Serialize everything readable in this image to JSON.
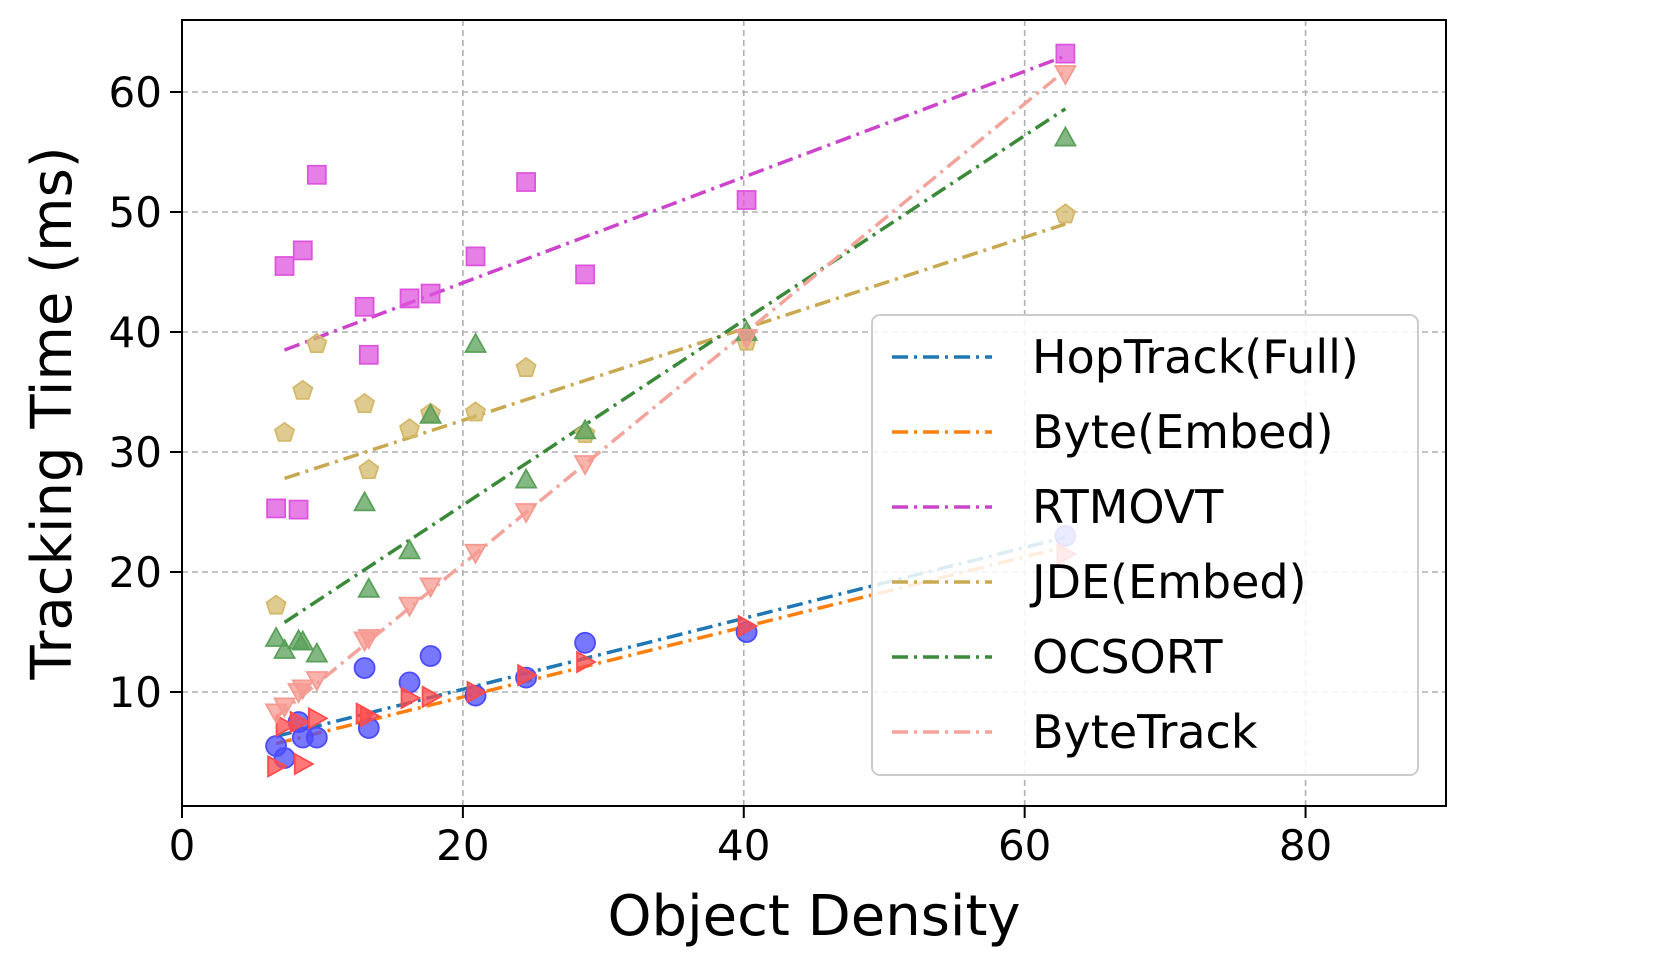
{
  "chart_data": {
    "type": "scatter",
    "xlabel": "Object Density",
    "ylabel": "Tracking Time (ms)",
    "xlim": [
      0,
      90
    ],
    "ylim": [
      0.5,
      66
    ],
    "grid": true,
    "legend_position": "lower-right",
    "xticks": [
      0,
      20,
      40,
      60,
      80
    ],
    "yticks": [
      10,
      20,
      30,
      40,
      50,
      60
    ],
    "series": [
      {
        "name": "HopTrack(Full)",
        "marker": "circle",
        "marker_color": "#4b4bff",
        "line_color": "#1f77b4",
        "x": [
          6.7,
          7.3,
          8.3,
          8.6,
          9.6,
          13.0,
          13.3,
          16.2,
          17.7,
          20.9,
          24.5,
          28.7,
          40.2,
          62.9
        ],
        "y": [
          5.5,
          4.5,
          7.5,
          6.2,
          6.2,
          12.0,
          7.0,
          10.8,
          13.0,
          9.7,
          11.2,
          14.1,
          15.0,
          23.0
        ],
        "fit": [
          [
            6.7,
            6.3
          ],
          [
            62.9,
            22.9
          ]
        ]
      },
      {
        "name": "Byte(Embed)",
        "marker": "triangle-right",
        "marker_color": "#ff4b4b",
        "line_color": "#ff7f0e",
        "x": [
          6.7,
          7.3,
          8.3,
          8.6,
          9.6,
          13.0,
          13.3,
          16.2,
          17.7,
          20.9,
          24.5,
          28.7,
          40.2,
          62.9
        ],
        "y": [
          3.8,
          7.2,
          7.5,
          4.0,
          7.8,
          8.2,
          8.0,
          9.5,
          9.6,
          10.0,
          11.4,
          12.5,
          15.5,
          21.5
        ],
        "fit": [
          [
            6.7,
            5.7
          ],
          [
            62.9,
            22.1
          ]
        ]
      },
      {
        "name": "RTMOVT",
        "marker": "square",
        "marker_color": "#dd55dd",
        "line_color": "#cc44cc",
        "x": [
          6.7,
          7.3,
          8.3,
          8.6,
          9.6,
          13.0,
          13.3,
          16.2,
          17.7,
          20.9,
          24.5,
          28.7,
          40.2,
          62.9
        ],
        "y": [
          25.3,
          45.5,
          25.2,
          46.8,
          53.1,
          42.1,
          38.1,
          42.8,
          43.2,
          46.3,
          52.5,
          44.8,
          51.0,
          63.2
        ],
        "fit": [
          [
            7.3,
            38.5
          ],
          [
            62.9,
            63.0
          ]
        ]
      },
      {
        "name": "JDE(Embed)",
        "marker": "pentagon",
        "marker_color": "#d4b96a",
        "line_color": "#c8a850",
        "x": [
          6.7,
          7.3,
          8.6,
          9.6,
          13.0,
          13.3,
          16.2,
          17.7,
          20.9,
          24.5,
          28.7,
          40.2,
          62.9
        ],
        "y": [
          17.2,
          31.6,
          35.1,
          39.0,
          34.0,
          28.5,
          31.9,
          33.2,
          33.3,
          37.0,
          31.5,
          39.2,
          49.8
        ],
        "fit": [
          [
            7.3,
            27.8
          ],
          [
            62.9,
            49.0
          ]
        ]
      },
      {
        "name": "OCSORT",
        "marker": "triangle-up",
        "marker_color": "#5aa05a",
        "line_color": "#3a8a3a",
        "x": [
          6.7,
          7.3,
          8.3,
          8.6,
          9.6,
          13.0,
          13.3,
          16.2,
          17.7,
          20.9,
          24.5,
          28.7,
          40.2,
          62.9
        ],
        "y": [
          14.5,
          13.5,
          14.3,
          14.2,
          13.2,
          25.8,
          18.6,
          21.8,
          33.1,
          39.0,
          27.7,
          31.8,
          40.0,
          56.2
        ],
        "fit": [
          [
            7.3,
            15.8
          ],
          [
            62.9,
            58.6
          ]
        ]
      },
      {
        "name": "ByteTrack",
        "marker": "triangle-down",
        "marker_color": "#f59a90",
        "line_color": "#f3a39a",
        "x": [
          6.7,
          7.3,
          8.3,
          8.6,
          9.6,
          13.0,
          13.3,
          16.2,
          17.7,
          20.9,
          24.5,
          28.7,
          40.2,
          62.9
        ],
        "y": [
          8.3,
          8.8,
          10.0,
          10.3,
          11.0,
          14.3,
          14.5,
          17.2,
          18.8,
          21.6,
          25.0,
          29.0,
          39.5,
          61.5
        ],
        "fit": [
          [
            6.7,
            7.9
          ],
          [
            62.9,
            61.8
          ]
        ]
      }
    ]
  }
}
